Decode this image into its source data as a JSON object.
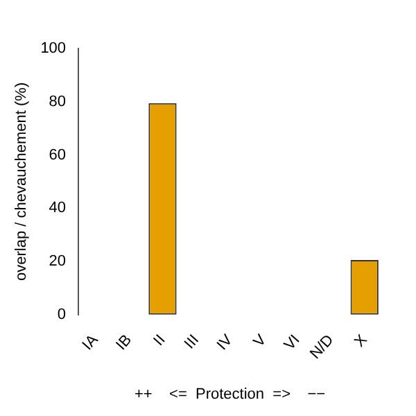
{
  "chart_data": {
    "type": "bar",
    "xlabel": "++    <=  Protection  =>    −−",
    "ylabel": "overlap / chevauchement (%)",
    "categories": [
      "IA",
      "IB",
      "II",
      "III",
      "IV",
      "V",
      "VI",
      "N/D",
      "X"
    ],
    "values": [
      0,
      0,
      79.5,
      0,
      0,
      0,
      0,
      0,
      20.5
    ],
    "color": "#e69f00",
    "ylim": [
      0,
      100
    ],
    "yticks": [
      0,
      20,
      40,
      60,
      80,
      100
    ],
    "grid": false
  }
}
